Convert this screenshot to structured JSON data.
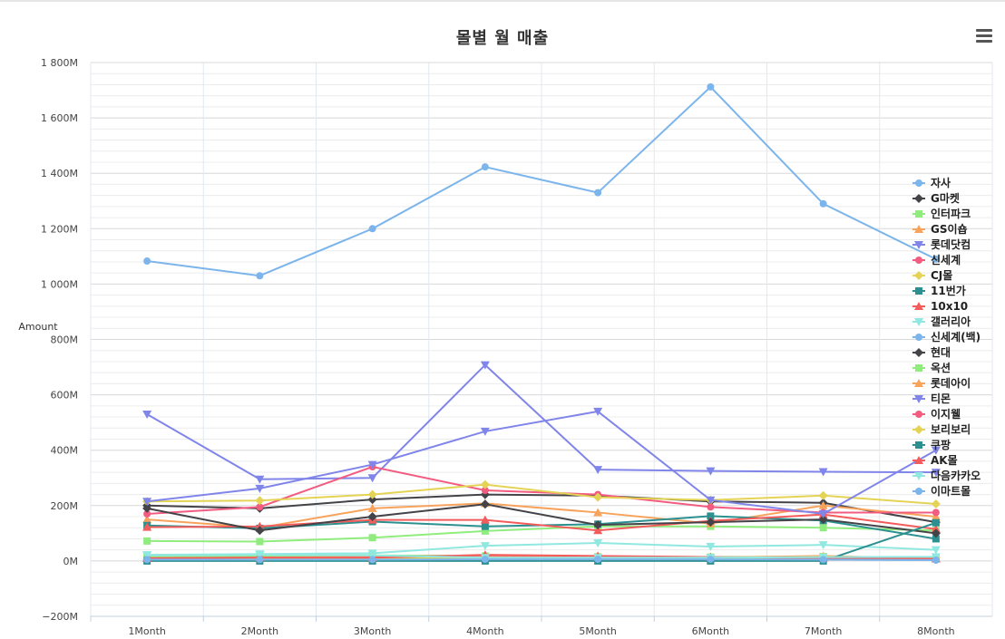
{
  "chart_data": {
    "type": "line",
    "title": "몰별 월 매출",
    "ylabel": "Amount",
    "xlabel": "",
    "categories": [
      "1Month",
      "2Month",
      "3Month",
      "4Month",
      "5Month",
      "6Month",
      "7Month",
      "8Month"
    ],
    "ylim": [
      -200,
      1800
    ],
    "yticks": [
      -200,
      0,
      200,
      400,
      600,
      800,
      1000,
      1200,
      1400,
      1600,
      1800
    ],
    "ytick_labels": [
      "−200M",
      "0M",
      "200M",
      "400M",
      "600M",
      "800M",
      "1 000M",
      "1 200M",
      "1 400M",
      "1 600M",
      "1 800M"
    ],
    "grid": true,
    "legend_position": "right",
    "series": [
      {
        "name": "자사",
        "color": "#7cb5ec",
        "marker": "circle",
        "values": [
          1083,
          1030,
          1200,
          1423,
          1330,
          1712,
          1290,
          1090
        ]
      },
      {
        "name": "G마켓",
        "color": "#434348",
        "marker": "diamond",
        "values": [
          200,
          190,
          222,
          240,
          236,
          215,
          210,
          140
        ]
      },
      {
        "name": "인터파크",
        "color": "#90ed7d",
        "marker": "square",
        "values": [
          72,
          70,
          84,
          108,
          125,
          125,
          120,
          110
        ]
      },
      {
        "name": "GS이숍",
        "color": "#f7a35c",
        "marker": "triangle",
        "values": [
          150,
          120,
          190,
          208,
          175,
          135,
          200,
          160
        ]
      },
      {
        "name": "롯데닷컴",
        "color": "#8085e9",
        "marker": "triangle-down",
        "values": [
          530,
          295,
          300,
          708,
          330,
          325,
          322,
          320
        ]
      },
      {
        "name": "신세계",
        "color": "#f15c80",
        "marker": "circle",
        "values": [
          170,
          195,
          340,
          255,
          240,
          195,
          175,
          175
        ]
      },
      {
        "name": "CJ몰",
        "color": "#e4d354",
        "marker": "diamond",
        "values": [
          215,
          218,
          240,
          276,
          230,
          220,
          236,
          206
        ]
      },
      {
        "name": "11번가",
        "color": "#2b908f",
        "marker": "square",
        "values": [
          128,
          118,
          142,
          125,
          133,
          162,
          146,
          80
        ]
      },
      {
        "name": "10x10",
        "color": "#f45b5b",
        "marker": "triangle",
        "values": [
          122,
          125,
          148,
          148,
          110,
          145,
          168,
          115
        ]
      },
      {
        "name": "갤러리아",
        "color": "#91e8e1",
        "marker": "triangle-down",
        "values": [
          22,
          25,
          28,
          55,
          65,
          52,
          58,
          40
        ]
      },
      {
        "name": "신세계(백)",
        "color": "#7cb5ec",
        "marker": "circle",
        "values": [
          2,
          3,
          2,
          5,
          6,
          6,
          5,
          3
        ]
      },
      {
        "name": "현대",
        "color": "#434348",
        "marker": "diamond",
        "values": [
          190,
          110,
          160,
          205,
          130,
          140,
          150,
          100
        ]
      },
      {
        "name": "옥션",
        "color": "#90ed7d",
        "marker": "square",
        "values": [
          15,
          18,
          20,
          18,
          15,
          14,
          16,
          10
        ]
      },
      {
        "name": "롯데아이",
        "color": "#f7a35c",
        "marker": "triangle",
        "values": [
          10,
          12,
          15,
          20,
          14,
          12,
          18,
          8
        ]
      },
      {
        "name": "티몬",
        "color": "#8085e9",
        "marker": "triangle-down",
        "values": [
          215,
          262,
          348,
          468,
          540,
          220,
          170,
          400
        ]
      },
      {
        "name": "이지웰",
        "color": "#f15c80",
        "marker": "circle",
        "values": [
          8,
          10,
          12,
          14,
          12,
          10,
          8,
          5
        ]
      },
      {
        "name": "보리보리",
        "color": "#e4d354",
        "marker": "diamond",
        "values": [
          5,
          8,
          10,
          12,
          10,
          8,
          15,
          12
        ]
      },
      {
        "name": "쿠팡",
        "color": "#2b908f",
        "marker": "square",
        "values": [
          0,
          0,
          0,
          0,
          0,
          0,
          0,
          138
        ]
      },
      {
        "name": "AK몰",
        "color": "#f45b5b",
        "marker": "triangle",
        "values": [
          10,
          12,
          12,
          22,
          18,
          14,
          10,
          8
        ]
      },
      {
        "name": "다음카카오",
        "color": "#91e8e1",
        "marker": "triangle-down",
        "values": [
          20,
          22,
          20,
          12,
          12,
          12,
          14,
          15
        ]
      },
      {
        "name": "이마트몰",
        "color": "#7cb5ec",
        "marker": "circle",
        "values": [
          5,
          5,
          5,
          6,
          6,
          6,
          5,
          3
        ]
      }
    ]
  }
}
